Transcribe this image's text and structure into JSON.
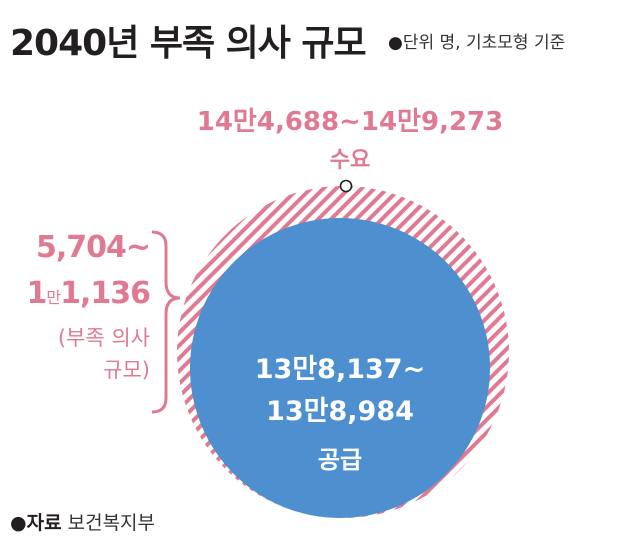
{
  "title": "2040년 부족 의사 규모",
  "unit_note": "단위 명, 기초모형 기준",
  "demand": {
    "range": "14만4,688~14만9,273",
    "label": "수요"
  },
  "shortage": {
    "line1": "5,704~",
    "line2_prefix": "1",
    "line2_man": "만",
    "line2_suffix": "1,136",
    "note_line1": "(부족 의사",
    "note_line2": "규모)"
  },
  "supply": {
    "line1": "13만8,137~",
    "line2": "13만8,984",
    "label": "공급"
  },
  "source": {
    "label": "자료",
    "value": "보건복지부"
  },
  "colors": {
    "demand_pink": "#e07a92",
    "supply_blue": "#4e8fcf",
    "text_dark": "#231f20"
  }
}
